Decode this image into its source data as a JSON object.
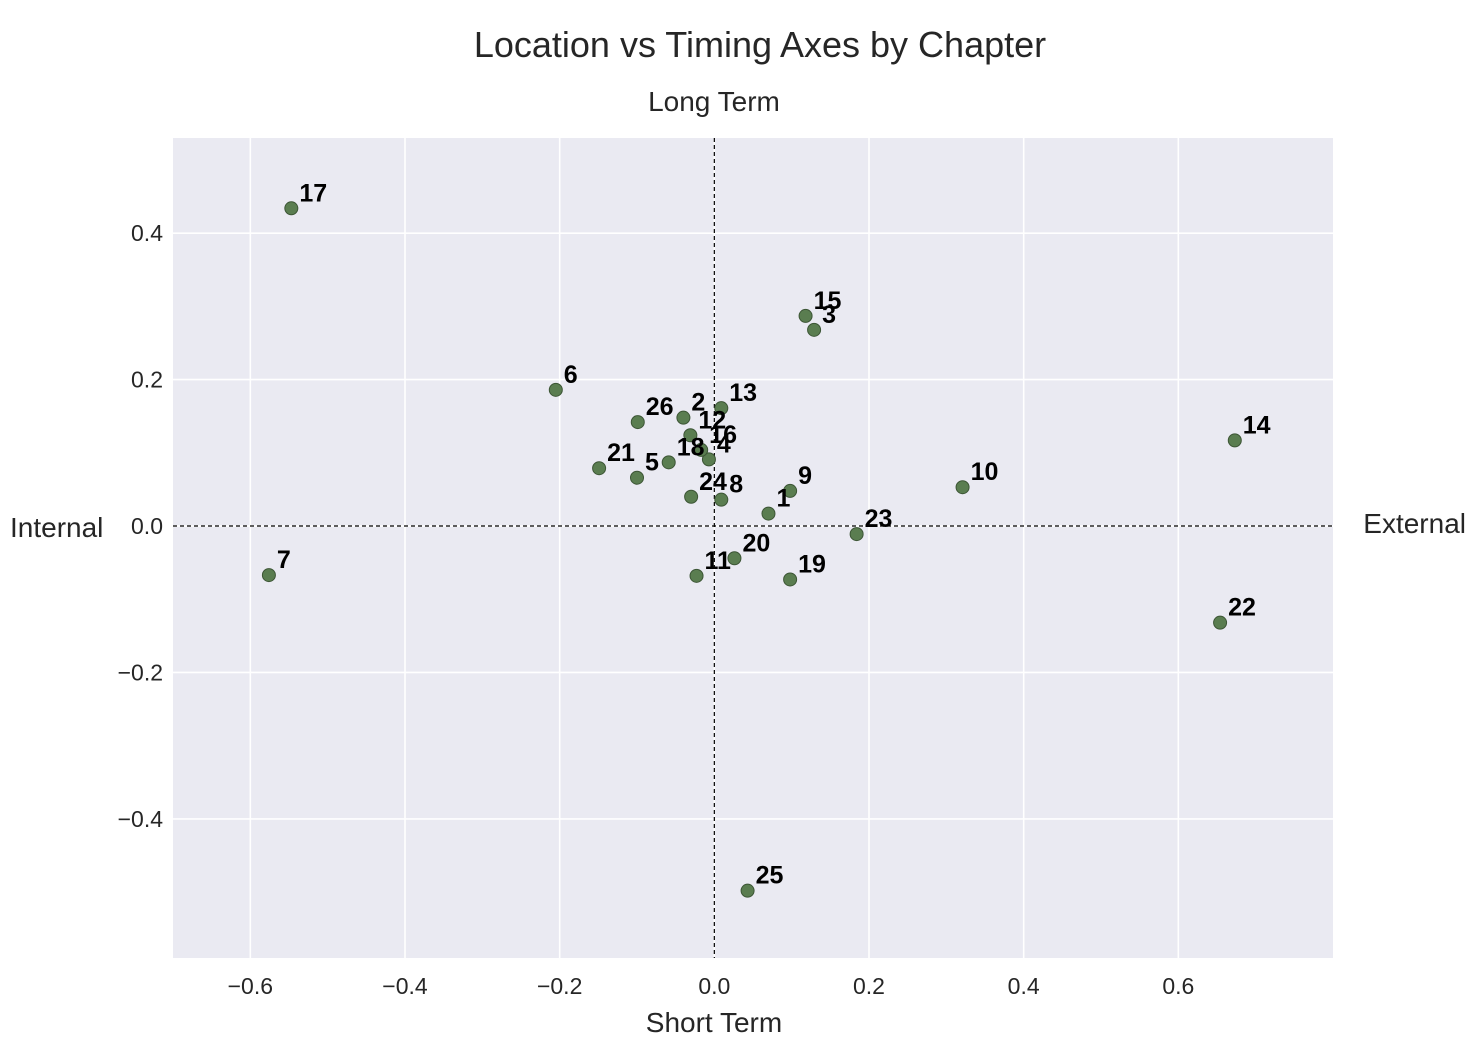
{
  "chart_data": {
    "type": "scatter",
    "title": "Location vs Timing Axes by Chapter",
    "xlabel": "Short Term",
    "top_label": "Long Term",
    "left_label": "Internal",
    "right_label": "External",
    "xlim": [
      -0.7,
      0.8
    ],
    "ylim": [
      -0.59,
      0.53
    ],
    "xticks": [
      -0.6,
      -0.4,
      -0.2,
      0.0,
      0.2,
      0.4,
      0.6
    ],
    "xtick_labels": [
      "−0.6",
      "−0.4",
      "−0.2",
      "0.0",
      "0.2",
      "0.4",
      "0.6"
    ],
    "yticks": [
      -0.4,
      -0.2,
      0.0,
      0.2,
      0.4
    ],
    "ytick_labels": [
      "−0.4",
      "−0.2",
      "0.0",
      "0.2",
      "0.4"
    ],
    "grid": true,
    "colors": {
      "background": "#eaeaf2",
      "grid": "#ffffff",
      "point_fill": "#5a7d50",
      "point_edge": "#3c5535"
    },
    "points": [
      {
        "label": "1",
        "x": 0.07,
        "y": 0.017
      },
      {
        "label": "2",
        "x": -0.04,
        "y": 0.148
      },
      {
        "label": "3",
        "x": 0.129,
        "y": 0.268
      },
      {
        "label": "4",
        "x": -0.007,
        "y": 0.091
      },
      {
        "label": "5",
        "x": -0.1,
        "y": 0.066
      },
      {
        "label": "6",
        "x": -0.205,
        "y": 0.186
      },
      {
        "label": "7",
        "x": -0.576,
        "y": -0.067
      },
      {
        "label": "8",
        "x": 0.009,
        "y": 0.036
      },
      {
        "label": "9",
        "x": 0.098,
        "y": 0.048
      },
      {
        "label": "10",
        "x": 0.321,
        "y": 0.053
      },
      {
        "label": "11",
        "x": -0.023,
        "y": -0.068
      },
      {
        "label": "12",
        "x": -0.031,
        "y": 0.124
      },
      {
        "label": "13",
        "x": 0.009,
        "y": 0.161
      },
      {
        "label": "14",
        "x": 0.673,
        "y": 0.117
      },
      {
        "label": "15",
        "x": 0.118,
        "y": 0.287
      },
      {
        "label": "16",
        "x": -0.017,
        "y": 0.104
      },
      {
        "label": "17",
        "x": -0.547,
        "y": 0.434
      },
      {
        "label": "18",
        "x": -0.059,
        "y": 0.087
      },
      {
        "label": "19",
        "x": 0.098,
        "y": -0.073
      },
      {
        "label": "20",
        "x": 0.026,
        "y": -0.044
      },
      {
        "label": "21",
        "x": -0.149,
        "y": 0.079
      },
      {
        "label": "22",
        "x": 0.654,
        "y": -0.132
      },
      {
        "label": "23",
        "x": 0.184,
        "y": -0.011
      },
      {
        "label": "24",
        "x": -0.03,
        "y": 0.04
      },
      {
        "label": "25",
        "x": 0.043,
        "y": -0.498
      },
      {
        "label": "26",
        "x": -0.099,
        "y": 0.142
      }
    ]
  }
}
